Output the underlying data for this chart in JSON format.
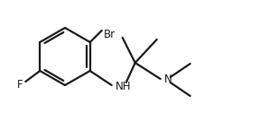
{
  "bg_color": "#ffffff",
  "line_color": "#1a1a1a",
  "atom_color": "#1a1a1a",
  "label_NH": "NH",
  "label_N": "N",
  "label_F": "F",
  "label_Br": "Br",
  "font_size": 8.5,
  "line_width": 1.6,
  "figsize": [
    2.98,
    1.26
  ],
  "dpi": 100
}
